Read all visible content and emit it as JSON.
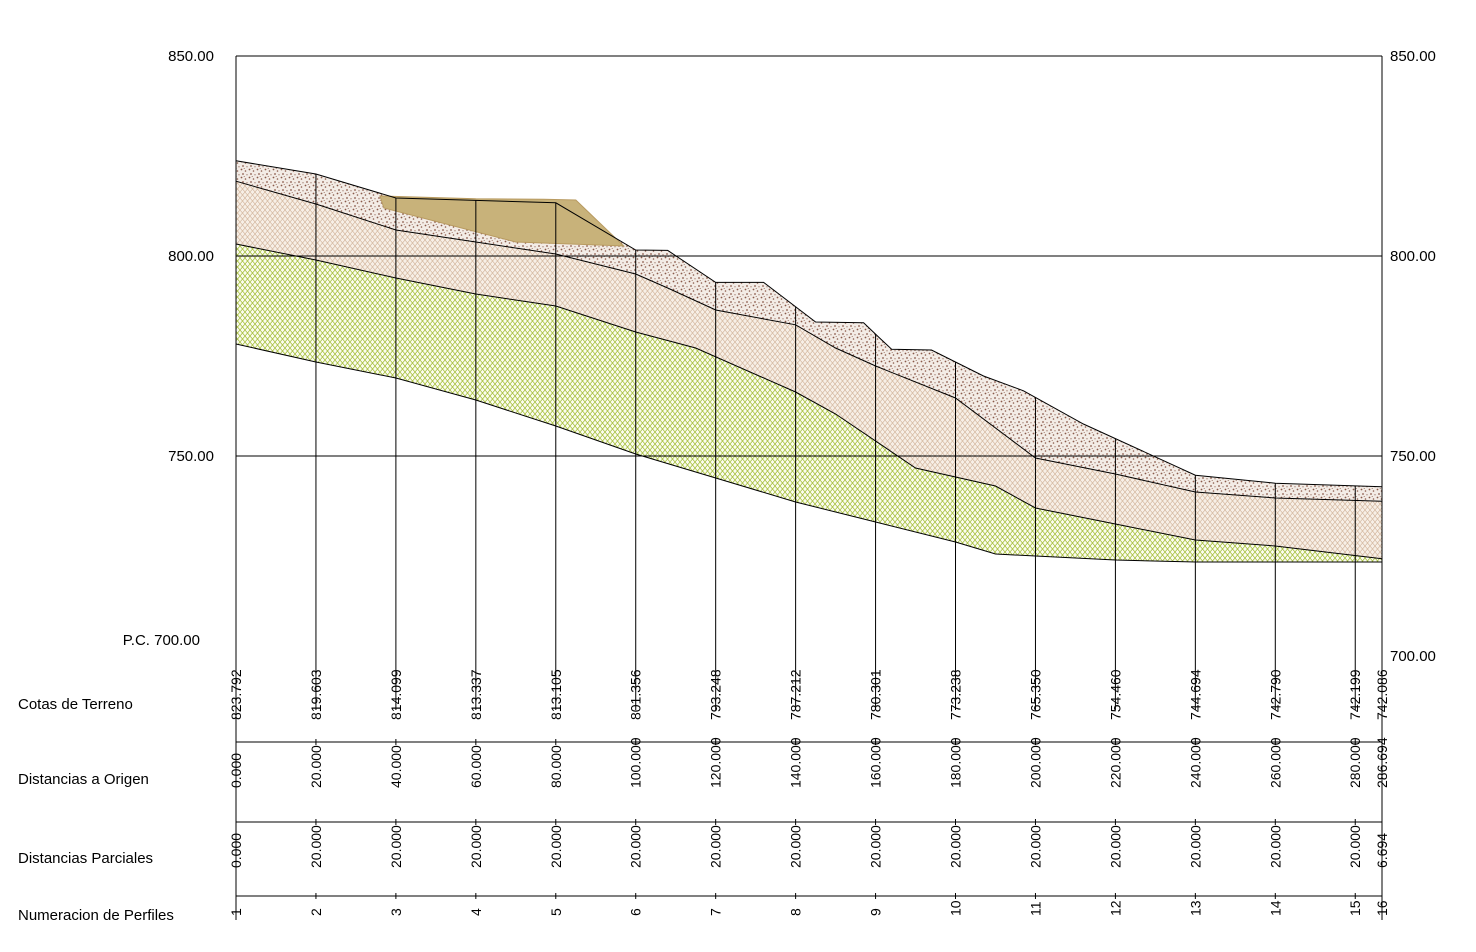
{
  "y_axis": {
    "datum_label": "P.C. 700.00",
    "left_ticks": [
      {
        "value": 850,
        "label": "850.00"
      },
      {
        "value": 800,
        "label": "800.00"
      },
      {
        "value": 750,
        "label": "750.00"
      }
    ],
    "right_ticks": [
      {
        "value": 850,
        "label": "850.00"
      },
      {
        "value": 800,
        "label": "800.00"
      },
      {
        "value": 750,
        "label": "750.00"
      },
      {
        "value": 700,
        "label": "700.00"
      }
    ],
    "min": 700,
    "max": 850
  },
  "rows": {
    "cotas": "Cotas de Terreno",
    "dist_origen": "Distancias a Origen",
    "dist_parciales": "Distancias Parciales",
    "numeracion": "Numeracion de Perfiles"
  },
  "stations": [
    {
      "num": "1",
      "dist": 0,
      "cota": "823.792",
      "origen": "0.000",
      "parcial": "0.000"
    },
    {
      "num": "2",
      "dist": 20,
      "cota": "819.603",
      "origen": "20.000",
      "parcial": "20.000"
    },
    {
      "num": "3",
      "dist": 40,
      "cota": "814.099",
      "origen": "40.000",
      "parcial": "20.000"
    },
    {
      "num": "4",
      "dist": 60,
      "cota": "813.337",
      "origen": "60.000",
      "parcial": "20.000"
    },
    {
      "num": "5",
      "dist": 80,
      "cota": "813.105",
      "origen": "80.000",
      "parcial": "20.000"
    },
    {
      "num": "6",
      "dist": 100,
      "cota": "801.356",
      "origen": "100.000",
      "parcial": "20.000"
    },
    {
      "num": "7",
      "dist": 120,
      "cota": "793.248",
      "origen": "120.000",
      "parcial": "20.000"
    },
    {
      "num": "8",
      "dist": 140,
      "cota": "787.212",
      "origen": "140.000",
      "parcial": "20.000"
    },
    {
      "num": "9",
      "dist": 160,
      "cota": "780.301",
      "origen": "160.000",
      "parcial": "20.000"
    },
    {
      "num": "10",
      "dist": 180,
      "cota": "773.238",
      "origen": "180.000",
      "parcial": "20.000"
    },
    {
      "num": "11",
      "dist": 200,
      "cota": "765.350",
      "origen": "200.000",
      "parcial": "20.000"
    },
    {
      "num": "12",
      "dist": 220,
      "cota": "754.460",
      "origen": "220.000",
      "parcial": "20.000"
    },
    {
      "num": "13",
      "dist": 240,
      "cota": "744.694",
      "origen": "240.000",
      "parcial": "20.000"
    },
    {
      "num": "14",
      "dist": 260,
      "cota": "742.790",
      "origen": "260.000",
      "parcial": "20.000"
    },
    {
      "num": "15",
      "dist": 280,
      "cota": "742.199",
      "origen": "280.000",
      "parcial": "20.000"
    },
    {
      "num": "16",
      "dist": 286.694,
      "cota": "742.086",
      "origen": "286.694",
      "parcial": "6.694"
    }
  ],
  "layers": {
    "surface": [
      [
        0,
        823.8
      ],
      [
        20,
        820.5
      ],
      [
        40,
        814.5
      ],
      [
        80,
        813.3
      ],
      [
        100,
        801.5
      ],
      [
        108,
        801.4
      ],
      [
        120,
        793.4
      ],
      [
        132,
        793.4
      ],
      [
        145,
        783.5
      ],
      [
        157,
        783.3
      ],
      [
        161,
        779.5
      ],
      [
        164,
        776.7
      ],
      [
        174,
        776.5
      ],
      [
        187,
        770
      ],
      [
        197,
        766.3
      ],
      [
        212,
        758
      ],
      [
        240,
        745.2
      ],
      [
        260,
        743.2
      ],
      [
        286.694,
        742.3
      ]
    ],
    "layer1_base": [
      [
        0,
        818.7
      ],
      [
        20,
        813
      ],
      [
        40,
        806.5
      ],
      [
        60,
        803.5
      ],
      [
        80,
        800.5
      ],
      [
        100,
        795.5
      ],
      [
        108,
        792
      ],
      [
        120,
        786.5
      ],
      [
        140,
        782.8
      ],
      [
        150,
        777
      ],
      [
        160,
        772.5
      ],
      [
        180,
        764.5
      ],
      [
        200,
        749.5
      ],
      [
        220,
        745.5
      ],
      [
        240,
        741
      ],
      [
        260,
        739.5
      ],
      [
        286.694,
        738.7
      ]
    ],
    "layer2_base": [
      [
        0,
        803
      ],
      [
        20,
        799
      ],
      [
        40,
        794.5
      ],
      [
        60,
        790.5
      ],
      [
        80,
        787.5
      ],
      [
        100,
        781
      ],
      [
        115,
        777
      ],
      [
        140,
        766
      ],
      [
        150,
        760.5
      ],
      [
        170,
        747
      ],
      [
        190,
        742.5
      ],
      [
        200,
        737
      ],
      [
        220,
        733
      ],
      [
        240,
        729
      ],
      [
        260,
        727.5
      ],
      [
        286.694,
        724.3
      ]
    ],
    "layer3_base": [
      [
        0,
        778
      ],
      [
        20,
        773.5
      ],
      [
        40,
        769.5
      ],
      [
        60,
        764
      ],
      [
        80,
        757.5
      ],
      [
        100,
        750.5
      ],
      [
        120,
        744.5
      ],
      [
        140,
        738.5
      ],
      [
        160,
        733.5
      ],
      [
        180,
        728.5
      ],
      [
        190,
        725.5
      ],
      [
        200,
        725
      ],
      [
        220,
        724
      ],
      [
        240,
        723.5
      ],
      [
        260,
        723.5
      ],
      [
        286.694,
        723.5
      ]
    ],
    "fill": [
      [
        36,
        815
      ],
      [
        60,
        814.3
      ],
      [
        77,
        814.2
      ],
      [
        85,
        814
      ],
      [
        97,
        802.5
      ],
      [
        70,
        803.5
      ],
      [
        37,
        812
      ]
    ],
    "colors": {
      "layer1": "#8a5a4a",
      "layer2": "#c9a88a",
      "layer3": "#a8c040",
      "fill": "#c8b27a",
      "fill_border": "#b89a60"
    }
  }
}
